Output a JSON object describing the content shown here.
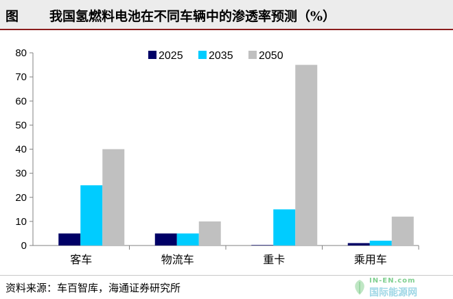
{
  "title": {
    "label": "图",
    "text": "我国氢燃料电池在不同车辆中的渗透率预测（%）"
  },
  "source": "资料来源：车百智库，海通证券研究所",
  "watermark": {
    "top": "IN-EN.com",
    "bottom": "国际能源网"
  },
  "chart_data": {
    "type": "bar",
    "categories": [
      "客车",
      "物流车",
      "重卡",
      "乘用车"
    ],
    "series": [
      {
        "name": "2025",
        "values": [
          5,
          5,
          0.2,
          1
        ],
        "color": "#000066"
      },
      {
        "name": "2035",
        "values": [
          25,
          5,
          15,
          2
        ],
        "color": "#00ccff"
      },
      {
        "name": "2050",
        "values": [
          40,
          10,
          75,
          12
        ],
        "color": "#c0c0c0"
      }
    ],
    "ylim": [
      0,
      80
    ],
    "yticks": [
      0,
      10,
      20,
      30,
      40,
      50,
      60,
      70,
      80
    ],
    "grid": false,
    "legend": "top"
  }
}
